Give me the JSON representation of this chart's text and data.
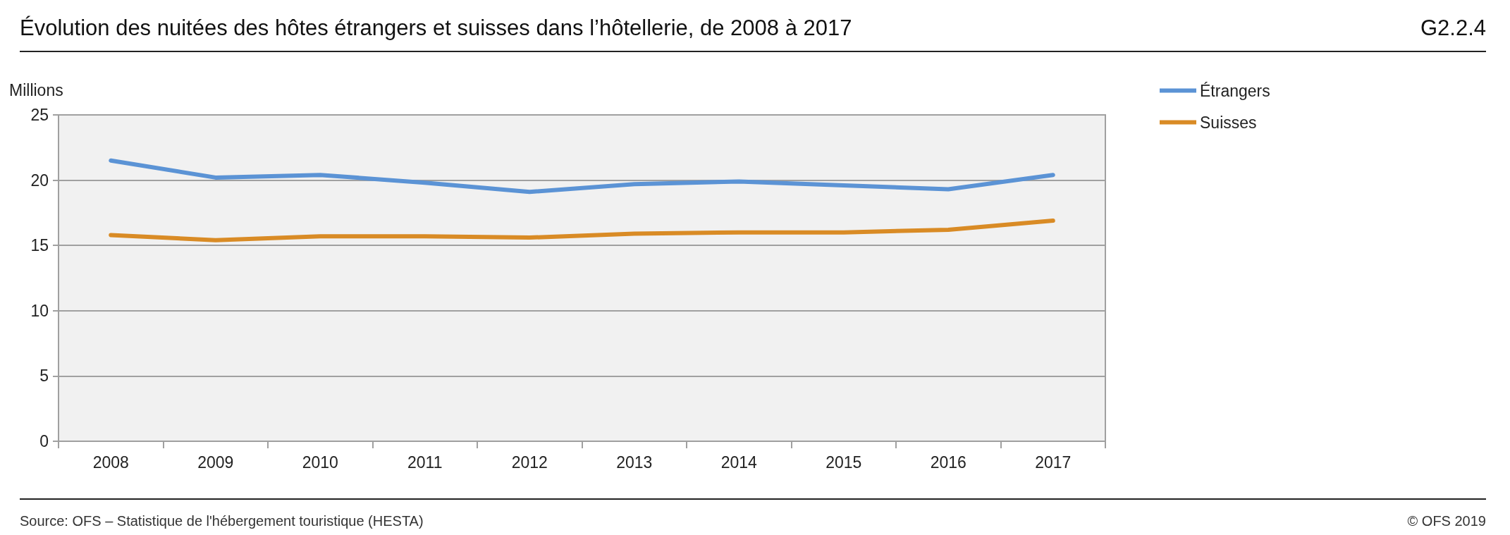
{
  "chart_data": {
    "type": "line",
    "title": "Évolution des nuitées des hôtes étrangers et suisses dans l’hôtellerie, de 2008 à 2017",
    "ylabel": "Millions",
    "categories": [
      "2008",
      "2009",
      "2010",
      "2011",
      "2012",
      "2013",
      "2014",
      "2015",
      "2016",
      "2017"
    ],
    "series": [
      {
        "name": "Étrangers",
        "color": "#5b93d5",
        "values": [
          21.5,
          20.2,
          20.4,
          19.8,
          19.1,
          19.7,
          19.9,
          19.6,
          19.3,
          20.4
        ]
      },
      {
        "name": "Suisses",
        "color": "#d98b25",
        "values": [
          15.8,
          15.4,
          15.7,
          15.7,
          15.6,
          15.9,
          16.0,
          16.0,
          16.2,
          16.9
        ]
      }
    ],
    "ylim": [
      0,
      25
    ],
    "yticks": [
      0,
      5,
      10,
      15,
      20,
      25
    ],
    "grid": "y",
    "legend": "right",
    "marker": "none",
    "line_style": "solid",
    "annotations": [
      "G2.2.4",
      "Source: OFS – Statistique de l'hébergement touristique (HESTA)",
      "© OFS 2019"
    ]
  }
}
